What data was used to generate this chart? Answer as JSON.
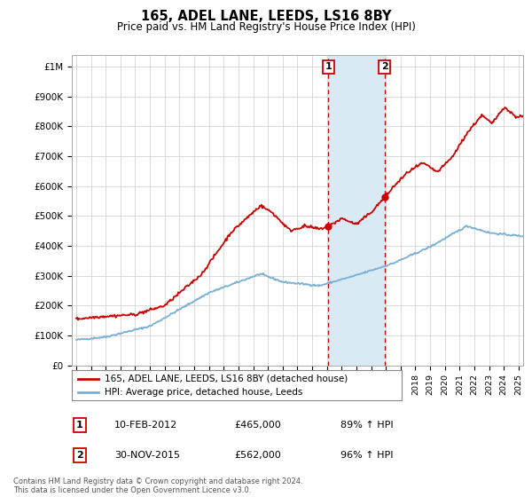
{
  "title": "165, ADEL LANE, LEEDS, LS16 8BY",
  "subtitle": "Price paid vs. HM Land Registry's House Price Index (HPI)",
  "ylabel_ticks": [
    "£0",
    "£100K",
    "£200K",
    "£300K",
    "£400K",
    "£500K",
    "£600K",
    "£700K",
    "£800K",
    "£900K",
    "£1M"
  ],
  "ytick_values": [
    0,
    100000,
    200000,
    300000,
    400000,
    500000,
    600000,
    700000,
    800000,
    900000,
    1000000
  ],
  "ylim": [
    0,
    1040000
  ],
  "xlim_start": 1994.7,
  "xlim_end": 2025.3,
  "transaction1_date": 2012.11,
  "transaction1_price": 465000,
  "transaction1_label": "1",
  "transaction2_date": 2015.92,
  "transaction2_price": 562000,
  "transaction2_label": "2",
  "shaded_region_start": 2012.11,
  "shaded_region_end": 2015.92,
  "legend_line1": "165, ADEL LANE, LEEDS, LS16 8BY (detached house)",
  "legend_line2": "HPI: Average price, detached house, Leeds",
  "annotation1_date": "10-FEB-2012",
  "annotation1_price": "£465,000",
  "annotation1_hpi": "89% ↑ HPI",
  "annotation2_date": "30-NOV-2015",
  "annotation2_price": "£562,000",
  "annotation2_hpi": "96% ↑ HPI",
  "footnote": "Contains HM Land Registry data © Crown copyright and database right 2024.\nThis data is licensed under the Open Government Licence v3.0.",
  "red_color": "#cc0000",
  "blue_color": "#7aafd4",
  "shading_color": "#daeaf5",
  "background_color": "#ffffff",
  "grid_color": "#cccccc"
}
